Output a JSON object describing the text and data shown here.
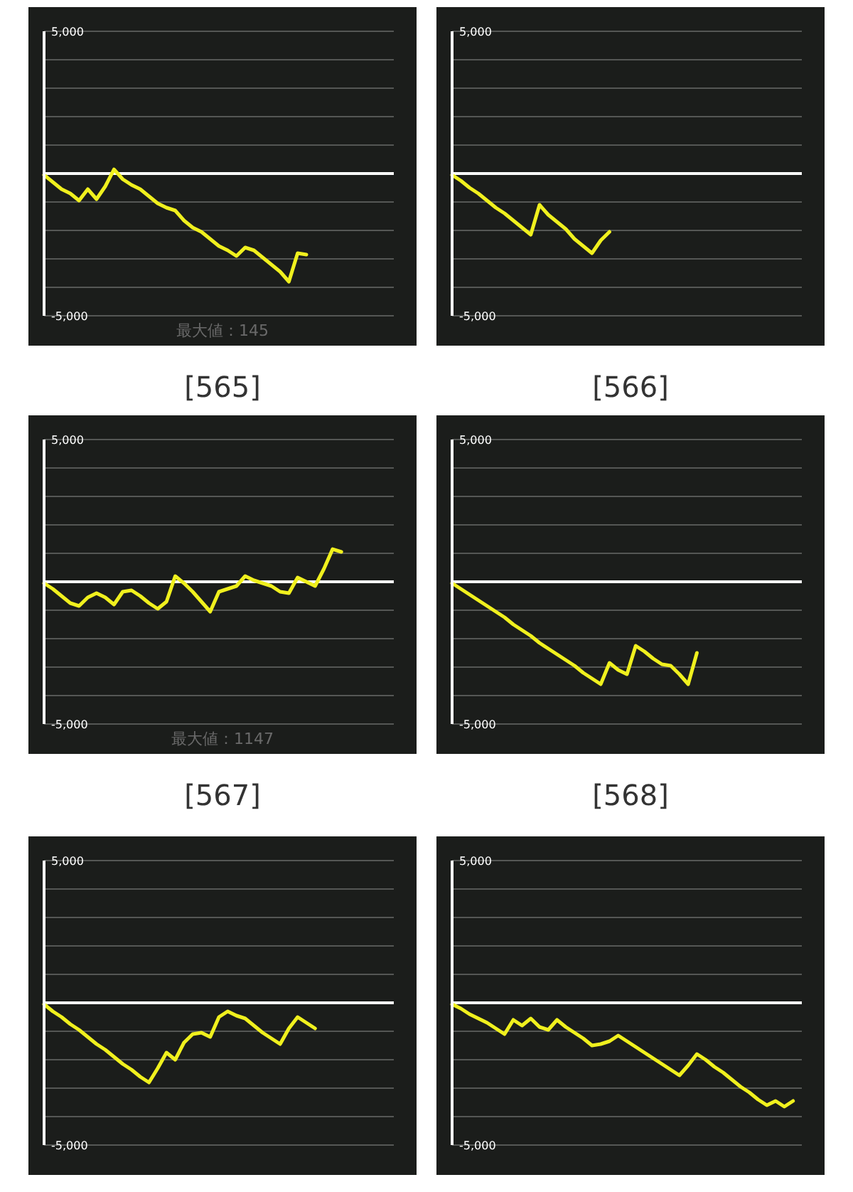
{
  "chart_data": [
    {
      "type": "line",
      "title": "[565]",
      "annotations": [
        "最大値：145"
      ],
      "categories": [
        null,
        null,
        null,
        null,
        null,
        null,
        null,
        null,
        null,
        null,
        null,
        null,
        null,
        null,
        null,
        null,
        null,
        null,
        null,
        null,
        null,
        null,
        null,
        null,
        null,
        null,
        null,
        null,
        null,
        null,
        null,
        null,
        null,
        null,
        null,
        null,
        null,
        null,
        null,
        null,
        null
      ],
      "series": [
        {
          "color": "#f0f01e",
          "values": [
            -50,
            -300,
            -550,
            -700,
            -950,
            -550,
            -900,
            -450,
            145,
            -200,
            -400,
            -550,
            -800,
            -1050,
            -1200,
            -1300,
            -1650,
            -1900,
            -2050,
            -2300,
            -2550,
            -2700,
            -2900,
            -2600,
            -2700,
            -2950,
            -3200,
            -3450,
            -3800,
            -2800,
            -2850,
            null,
            null,
            null,
            null,
            null,
            null,
            null,
            null,
            null,
            null
          ]
        }
      ],
      "ylim": [
        -5000,
        5000
      ],
      "yticks": [
        {
          "value": -5000,
          "label": "-5,000"
        },
        {
          "value": -4000,
          "label": null
        },
        {
          "value": -3000,
          "label": null
        },
        {
          "value": -2000,
          "label": null
        },
        {
          "value": -1000,
          "label": null
        },
        {
          "value": 0,
          "label": null
        },
        {
          "value": 1000,
          "label": null
        },
        {
          "value": 2000,
          "label": null
        },
        {
          "value": 3000,
          "label": null
        },
        {
          "value": 4000,
          "label": null
        },
        {
          "value": 5000,
          "label": "5,000"
        }
      ],
      "grid": "y",
      "tick_labels": "y",
      "ref_lines": [
        {
          "axis": "y",
          "value": 0,
          "color": "#ffffff"
        }
      ]
    },
    {
      "type": "line",
      "title": "[566]",
      "categories": [
        null,
        null,
        null,
        null,
        null,
        null,
        null,
        null,
        null,
        null,
        null,
        null,
        null,
        null,
        null,
        null,
        null,
        null,
        null,
        null,
        null,
        null,
        null,
        null,
        null,
        null,
        null,
        null,
        null,
        null,
        null,
        null,
        null,
        null,
        null,
        null,
        null,
        null,
        null,
        null,
        null
      ],
      "series": [
        {
          "color": "#f0f01e",
          "values": [
            -50,
            -250,
            -500,
            -700,
            -950,
            -1200,
            -1400,
            -1650,
            -1900,
            -2150,
            -1100,
            -1450,
            -1700,
            -1950,
            -2300,
            -2550,
            -2800,
            -2350,
            -2050,
            null,
            null,
            null,
            null,
            null,
            null,
            null,
            null,
            null,
            null,
            null,
            null,
            null,
            null,
            null,
            null,
            null,
            null,
            null,
            null,
            null,
            null
          ]
        }
      ],
      "ylim": [
        -5000,
        5000
      ],
      "yticks": [
        {
          "value": -5000,
          "label": "-5,000"
        },
        {
          "value": -4000,
          "label": null
        },
        {
          "value": -3000,
          "label": null
        },
        {
          "value": -2000,
          "label": null
        },
        {
          "value": -1000,
          "label": null
        },
        {
          "value": 0,
          "label": null
        },
        {
          "value": 1000,
          "label": null
        },
        {
          "value": 2000,
          "label": null
        },
        {
          "value": 3000,
          "label": null
        },
        {
          "value": 4000,
          "label": null
        },
        {
          "value": 5000,
          "label": "5,000"
        }
      ],
      "grid": "y",
      "tick_labels": "y",
      "ref_lines": [
        {
          "axis": "y",
          "value": 0,
          "color": "#ffffff"
        }
      ]
    },
    {
      "type": "line",
      "title": "[567]",
      "annotations": [
        "最大値：1147"
      ],
      "categories": [
        null,
        null,
        null,
        null,
        null,
        null,
        null,
        null,
        null,
        null,
        null,
        null,
        null,
        null,
        null,
        null,
        null,
        null,
        null,
        null,
        null,
        null,
        null,
        null,
        null,
        null,
        null,
        null,
        null,
        null,
        null,
        null,
        null,
        null,
        null,
        null,
        null,
        null,
        null,
        null,
        null
      ],
      "series": [
        {
          "color": "#f0f01e",
          "values": [
            -50,
            -250,
            -500,
            -750,
            -850,
            -550,
            -400,
            -550,
            -800,
            -350,
            -300,
            -500,
            -750,
            -950,
            -700,
            200,
            -50,
            -350,
            -700,
            -1050,
            -350,
            -250,
            -150,
            200,
            50,
            -50,
            -150,
            -350,
            -400,
            150,
            0,
            -150,
            450,
            1147,
            1050,
            null,
            null,
            null,
            null,
            null,
            null
          ]
        }
      ],
      "ylim": [
        -5000,
        5000
      ],
      "yticks": [
        {
          "value": -5000,
          "label": "-5,000"
        },
        {
          "value": -4000,
          "label": null
        },
        {
          "value": -3000,
          "label": null
        },
        {
          "value": -2000,
          "label": null
        },
        {
          "value": -1000,
          "label": null
        },
        {
          "value": 0,
          "label": null
        },
        {
          "value": 1000,
          "label": null
        },
        {
          "value": 2000,
          "label": null
        },
        {
          "value": 3000,
          "label": null
        },
        {
          "value": 4000,
          "label": null
        },
        {
          "value": 5000,
          "label": "5,000"
        }
      ],
      "grid": "y",
      "tick_labels": "y",
      "ref_lines": [
        {
          "axis": "y",
          "value": 0,
          "color": "#ffffff"
        }
      ]
    },
    {
      "type": "line",
      "title": "[568]",
      "categories": [
        null,
        null,
        null,
        null,
        null,
        null,
        null,
        null,
        null,
        null,
        null,
        null,
        null,
        null,
        null,
        null,
        null,
        null,
        null,
        null,
        null,
        null,
        null,
        null,
        null,
        null,
        null,
        null,
        null,
        null,
        null,
        null,
        null,
        null,
        null,
        null,
        null,
        null,
        null,
        null,
        null
      ],
      "series": [
        {
          "color": "#f0f01e",
          "values": [
            -50,
            -250,
            -450,
            -650,
            -850,
            -1050,
            -1250,
            -1500,
            -1700,
            -1900,
            -2150,
            -2350,
            -2550,
            -2750,
            -2950,
            -3200,
            -3400,
            -3600,
            -2850,
            -3100,
            -3250,
            -2250,
            -2450,
            -2700,
            -2900,
            -2950,
            -3250,
            -3600,
            -2500,
            null,
            null,
            null,
            null,
            null,
            null,
            null,
            null,
            null,
            null,
            null,
            null
          ]
        }
      ],
      "ylim": [
        -5000,
        5000
      ],
      "yticks": [
        {
          "value": -5000,
          "label": "-5,000"
        },
        {
          "value": -4000,
          "label": null
        },
        {
          "value": -3000,
          "label": null
        },
        {
          "value": -2000,
          "label": null
        },
        {
          "value": -1000,
          "label": null
        },
        {
          "value": 0,
          "label": null
        },
        {
          "value": 1000,
          "label": null
        },
        {
          "value": 2000,
          "label": null
        },
        {
          "value": 3000,
          "label": null
        },
        {
          "value": 4000,
          "label": null
        },
        {
          "value": 5000,
          "label": "5,000"
        }
      ],
      "grid": "y",
      "tick_labels": "y",
      "ref_lines": [
        {
          "axis": "y",
          "value": 0,
          "color": "#ffffff"
        }
      ]
    },
    {
      "type": "line",
      "categories": [
        null,
        null,
        null,
        null,
        null,
        null,
        null,
        null,
        null,
        null,
        null,
        null,
        null,
        null,
        null,
        null,
        null,
        null,
        null,
        null,
        null,
        null,
        null,
        null,
        null,
        null,
        null,
        null,
        null,
        null,
        null,
        null,
        null,
        null,
        null,
        null,
        null,
        null,
        null,
        null,
        null
      ],
      "series": [
        {
          "color": "#f0f01e",
          "values": [
            -50,
            -300,
            -500,
            -750,
            -950,
            -1200,
            -1450,
            -1650,
            -1900,
            -2150,
            -2350,
            -2600,
            -2800,
            -2300,
            -1750,
            -2000,
            -1400,
            -1100,
            -1050,
            -1200,
            -500,
            -300,
            -450,
            -550,
            -800,
            -1050,
            -1250,
            -1450,
            -900,
            -500,
            -700,
            -900,
            null,
            null,
            null,
            null,
            null,
            null,
            null,
            null,
            null
          ]
        }
      ],
      "ylim": [
        -5000,
        5000
      ],
      "yticks": [
        {
          "value": -5000,
          "label": "-5,000"
        },
        {
          "value": -4000,
          "label": null
        },
        {
          "value": -3000,
          "label": null
        },
        {
          "value": -2000,
          "label": null
        },
        {
          "value": -1000,
          "label": null
        },
        {
          "value": 0,
          "label": null
        },
        {
          "value": 1000,
          "label": null
        },
        {
          "value": 2000,
          "label": null
        },
        {
          "value": 3000,
          "label": null
        },
        {
          "value": 4000,
          "label": null
        },
        {
          "value": 5000,
          "label": "5,000"
        }
      ],
      "grid": "y",
      "tick_labels": "y",
      "ref_lines": [
        {
          "axis": "y",
          "value": 0,
          "color": "#ffffff"
        }
      ]
    },
    {
      "type": "line",
      "categories": [
        null,
        null,
        null,
        null,
        null,
        null,
        null,
        null,
        null,
        null,
        null,
        null,
        null,
        null,
        null,
        null,
        null,
        null,
        null,
        null,
        null,
        null,
        null,
        null,
        null,
        null,
        null,
        null,
        null,
        null,
        null,
        null,
        null,
        null,
        null,
        null,
        null,
        null,
        null,
        null,
        null
      ],
      "series": [
        {
          "color": "#f0f01e",
          "values": [
            -50,
            -200,
            -400,
            -550,
            -700,
            -900,
            -1100,
            -600,
            -800,
            -550,
            -850,
            -950,
            -600,
            -850,
            -1050,
            -1250,
            -1500,
            -1450,
            -1350,
            -1150,
            -1350,
            -1550,
            -1750,
            -1950,
            -2150,
            -2350,
            -2550,
            -2200,
            -1800,
            -2000,
            -2250,
            -2450,
            -2700,
            -2950,
            -3150,
            -3400,
            -3600,
            -3450,
            -3650,
            -3450,
            null
          ]
        }
      ],
      "ylim": [
        -5000,
        5000
      ],
      "yticks": [
        {
          "value": -5000,
          "label": "-5,000"
        },
        {
          "value": -4000,
          "label": null
        },
        {
          "value": -3000,
          "label": null
        },
        {
          "value": -2000,
          "label": null
        },
        {
          "value": -1000,
          "label": null
        },
        {
          "value": 0,
          "label": null
        },
        {
          "value": 1000,
          "label": null
        },
        {
          "value": 2000,
          "label": null
        },
        {
          "value": 3000,
          "label": null
        },
        {
          "value": 4000,
          "label": null
        },
        {
          "value": 5000,
          "label": "5,000"
        }
      ],
      "grid": "y",
      "tick_labels": "y",
      "ref_lines": [
        {
          "axis": "y",
          "value": 0,
          "color": "#ffffff"
        }
      ]
    }
  ]
}
